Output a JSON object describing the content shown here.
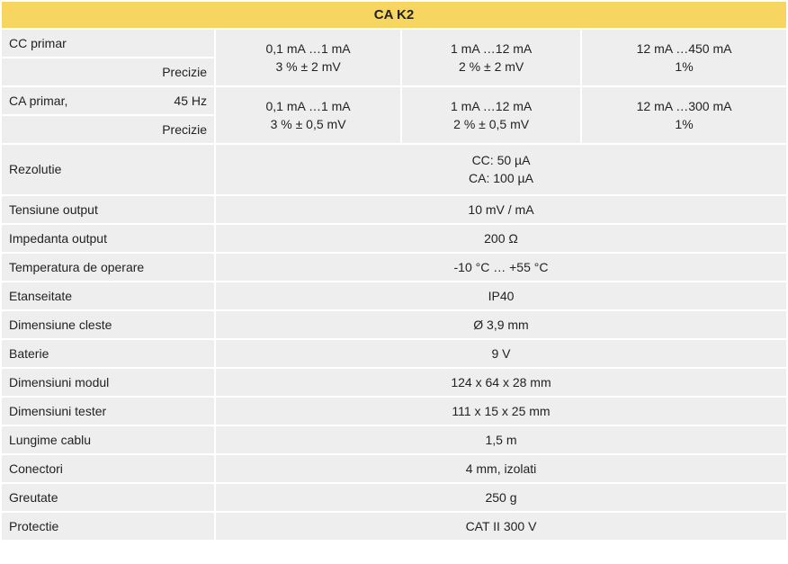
{
  "title": "CA K2",
  "cc": {
    "label": "CC primar",
    "subLabel": "Precizie",
    "col1": {
      "range": "0,1 mA …1 mA",
      "prec": "3 % ± 2 mV"
    },
    "col2": {
      "range": "1 mA …12 mA",
      "prec": "2 % ± 2 mV"
    },
    "col3": {
      "range": "12 mA …450 mA",
      "prec": "1%"
    }
  },
  "ca": {
    "label": "CA primar,",
    "labelExtra": "45 Hz",
    "subLabel": "Precizie",
    "col1": {
      "range": "0,1 mA …1 mA",
      "prec": "3 % ± 0,5 mV"
    },
    "col2": {
      "range": "1 mA …12 mA",
      "prec": "2 % ± 0,5 mV"
    },
    "col3": {
      "range": "12 mA …300 mA",
      "prec": "1%"
    }
  },
  "rez": {
    "label": "Rezolutie",
    "line1": "CC: 50 µA",
    "line2": "CA: 100 µA"
  },
  "rows": [
    {
      "label": "Tensiune output",
      "value": "10 mV / mA"
    },
    {
      "label": "Impedanta output",
      "value": "200 Ω"
    },
    {
      "label": "Temperatura de operare",
      "value": "-10 °C … +55 °C"
    },
    {
      "label": "Etanseitate",
      "value": "IP40"
    },
    {
      "label": "Dimensiune cleste",
      "value": "Ø 3,9 mm"
    },
    {
      "label": "Baterie",
      "value": "9 V"
    },
    {
      "label": "Dimensiuni modul",
      "value": "124 x 64 x 28 mm"
    },
    {
      "label": "Dimensiuni tester",
      "value": "111 x 15 x 25 mm"
    },
    {
      "label": "Lungime cablu",
      "value": "1,5 m"
    },
    {
      "label": "Conectori",
      "value": "4 mm, izolati"
    },
    {
      "label": "Greutate",
      "value": "250 g"
    },
    {
      "label": "Protectie",
      "value": "CAT II 300 V"
    }
  ]
}
